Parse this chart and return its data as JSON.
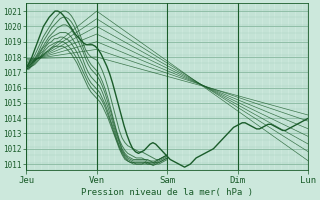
{
  "xlabel": "Pression niveau de la mer( hPa )",
  "bg_color": "#cce8dc",
  "grid_color_major": "#88b8a0",
  "grid_color_minor": "#aad4c0",
  "line_color": "#1a5c2a",
  "yticks": [
    1011,
    1012,
    1013,
    1014,
    1015,
    1016,
    1017,
    1018,
    1019,
    1020,
    1021
  ],
  "ylim": [
    1010.6,
    1021.5
  ],
  "day_labels": [
    "Jeu",
    "Ven",
    "Sam",
    "Dim",
    "Lun"
  ],
  "day_positions": [
    0,
    25,
    50,
    75,
    100
  ],
  "envelope_upper_starts": [
    1017.3,
    1017.4,
    1017.5,
    1017.6,
    1017.7,
    1017.8,
    1017.9
  ],
  "envelope_upper_peaks": [
    1021.0,
    1020.5,
    1020.0,
    1019.5,
    1019.0,
    1018.5,
    1018.0
  ],
  "envelope_lower_ends": [
    1011.2,
    1011.8,
    1012.3,
    1012.8,
    1013.3,
    1013.8,
    1014.2
  ],
  "spaghetti_lines": [
    [
      1017.3,
      1017.5,
      1017.8,
      1018.1,
      1018.5,
      1018.9,
      1019.3,
      1019.6,
      1019.9,
      1020.2,
      1020.5,
      1020.7,
      1020.9,
      1021.0,
      1021.0,
      1020.9,
      1020.7,
      1020.4,
      1020.0,
      1019.5,
      1019.0,
      1018.5,
      1018.2,
      1018.0,
      1017.9,
      1017.8,
      1017.5,
      1017.1,
      1016.6,
      1016.0,
      1015.3,
      1014.6,
      1013.9,
      1013.2,
      1012.7,
      1012.4,
      1012.2,
      1012.1,
      1012.0,
      1011.9,
      1011.8,
      1011.8,
      1011.7,
      1011.6,
      1011.5,
      1011.4,
      1011.3,
      1011.3,
      1011.4,
      1011.5,
      1011.6
    ],
    [
      1017.3,
      1017.4,
      1017.6,
      1017.9,
      1018.2,
      1018.6,
      1019.0,
      1019.3,
      1019.6,
      1019.9,
      1020.1,
      1020.3,
      1020.5,
      1020.6,
      1020.6,
      1020.5,
      1020.3,
      1020.0,
      1019.6,
      1019.2,
      1018.7,
      1018.2,
      1017.8,
      1017.5,
      1017.3,
      1017.1,
      1016.8,
      1016.4,
      1015.9,
      1015.3,
      1014.6,
      1013.9,
      1013.2,
      1012.6,
      1012.2,
      1011.9,
      1011.7,
      1011.6,
      1011.5,
      1011.4,
      1011.4,
      1011.4,
      1011.3,
      1011.3,
      1011.2,
      1011.2,
      1011.2,
      1011.3,
      1011.4,
      1011.5,
      1011.6
    ],
    [
      1017.3,
      1017.4,
      1017.6,
      1017.8,
      1018.1,
      1018.4,
      1018.7,
      1019.0,
      1019.3,
      1019.5,
      1019.7,
      1019.9,
      1020.0,
      1020.1,
      1020.1,
      1020.0,
      1019.8,
      1019.5,
      1019.2,
      1018.8,
      1018.4,
      1017.9,
      1017.5,
      1017.2,
      1017.0,
      1016.8,
      1016.5,
      1016.1,
      1015.6,
      1015.0,
      1014.4,
      1013.7,
      1013.1,
      1012.5,
      1012.0,
      1011.7,
      1011.5,
      1011.4,
      1011.3,
      1011.3,
      1011.3,
      1011.3,
      1011.3,
      1011.2,
      1011.2,
      1011.1,
      1011.2,
      1011.3,
      1011.4,
      1011.5,
      1011.6
    ],
    [
      1017.2,
      1017.3,
      1017.5,
      1017.7,
      1018.0,
      1018.3,
      1018.6,
      1018.8,
      1019.1,
      1019.3,
      1019.4,
      1019.5,
      1019.6,
      1019.6,
      1019.6,
      1019.5,
      1019.3,
      1019.0,
      1018.7,
      1018.3,
      1017.9,
      1017.4,
      1017.0,
      1016.7,
      1016.5,
      1016.3,
      1016.1,
      1015.7,
      1015.2,
      1014.7,
      1014.1,
      1013.5,
      1012.9,
      1012.4,
      1011.9,
      1011.6,
      1011.4,
      1011.3,
      1011.2,
      1011.2,
      1011.2,
      1011.2,
      1011.2,
      1011.1,
      1011.1,
      1011.1,
      1011.1,
      1011.2,
      1011.3,
      1011.4,
      1011.5
    ],
    [
      1017.2,
      1017.3,
      1017.5,
      1017.7,
      1017.9,
      1018.2,
      1018.4,
      1018.7,
      1018.9,
      1019.0,
      1019.2,
      1019.2,
      1019.3,
      1019.3,
      1019.2,
      1019.1,
      1018.9,
      1018.6,
      1018.3,
      1017.9,
      1017.5,
      1017.0,
      1016.6,
      1016.3,
      1016.1,
      1015.9,
      1015.7,
      1015.3,
      1014.9,
      1014.4,
      1013.8,
      1013.3,
      1012.7,
      1012.2,
      1011.8,
      1011.5,
      1011.3,
      1011.2,
      1011.1,
      1011.1,
      1011.1,
      1011.1,
      1011.1,
      1011.1,
      1011.0,
      1011.0,
      1011.1,
      1011.1,
      1011.2,
      1011.3,
      1011.4
    ],
    [
      1017.2,
      1017.3,
      1017.4,
      1017.6,
      1017.8,
      1018.0,
      1018.3,
      1018.5,
      1018.7,
      1018.8,
      1018.9,
      1019.0,
      1019.0,
      1019.0,
      1018.9,
      1018.7,
      1018.5,
      1018.2,
      1017.9,
      1017.5,
      1017.1,
      1016.7,
      1016.3,
      1016.0,
      1015.8,
      1015.6,
      1015.4,
      1015.1,
      1014.7,
      1014.2,
      1013.7,
      1013.1,
      1012.6,
      1012.1,
      1011.7,
      1011.4,
      1011.2,
      1011.1,
      1011.1,
      1011.0,
      1011.0,
      1011.0,
      1011.1,
      1011.0,
      1011.0,
      1011.0,
      1011.0,
      1011.1,
      1011.2,
      1011.3,
      1011.4
    ],
    [
      1017.2,
      1017.2,
      1017.4,
      1017.5,
      1017.7,
      1017.9,
      1018.1,
      1018.3,
      1018.4,
      1018.6,
      1018.7,
      1018.7,
      1018.7,
      1018.7,
      1018.6,
      1018.4,
      1018.2,
      1017.9,
      1017.6,
      1017.2,
      1016.8,
      1016.4,
      1016.0,
      1015.7,
      1015.5,
      1015.3,
      1015.1,
      1014.8,
      1014.4,
      1014.0,
      1013.5,
      1013.0,
      1012.5,
      1012.0,
      1011.6,
      1011.3,
      1011.2,
      1011.1,
      1011.0,
      1011.0,
      1011.0,
      1011.0,
      1011.0,
      1011.0,
      1011.0,
      1010.9,
      1011.0,
      1011.0,
      1011.1,
      1011.2,
      1011.3
    ]
  ],
  "main_wiggly": [
    1017.3,
    1017.6,
    1018.0,
    1018.5,
    1019.0,
    1019.5,
    1020.0,
    1020.3,
    1020.6,
    1020.8,
    1021.0,
    1021.0,
    1020.9,
    1020.7,
    1020.4,
    1020.1,
    1019.8,
    1019.5,
    1019.3,
    1019.1,
    1018.9,
    1018.8,
    1018.8,
    1018.8,
    1018.7,
    1018.5,
    1018.2,
    1017.8,
    1017.4,
    1016.9,
    1016.3,
    1015.6,
    1014.9,
    1014.2,
    1013.5,
    1012.9,
    1012.4,
    1012.0,
    1011.8,
    1011.7,
    1011.8,
    1011.9,
    1012.1,
    1012.3,
    1012.4,
    1012.3,
    1012.1,
    1011.9,
    1011.7,
    1011.5,
    1011.3,
    1011.2,
    1011.1,
    1011.0,
    1010.9,
    1010.8,
    1010.9,
    1011.0,
    1011.2,
    1011.4,
    1011.5,
    1011.6,
    1011.7,
    1011.8,
    1011.9,
    1012.0,
    1012.2,
    1012.4,
    1012.6,
    1012.8,
    1013.0,
    1013.2,
    1013.4,
    1013.5,
    1013.6,
    1013.7,
    1013.7,
    1013.6,
    1013.5,
    1013.4,
    1013.3,
    1013.3,
    1013.4,
    1013.5,
    1013.6,
    1013.6,
    1013.5,
    1013.4,
    1013.3,
    1013.2,
    1013.2,
    1013.3,
    1013.4,
    1013.5,
    1013.6,
    1013.7,
    1013.8,
    1013.9,
    1014.0
  ]
}
